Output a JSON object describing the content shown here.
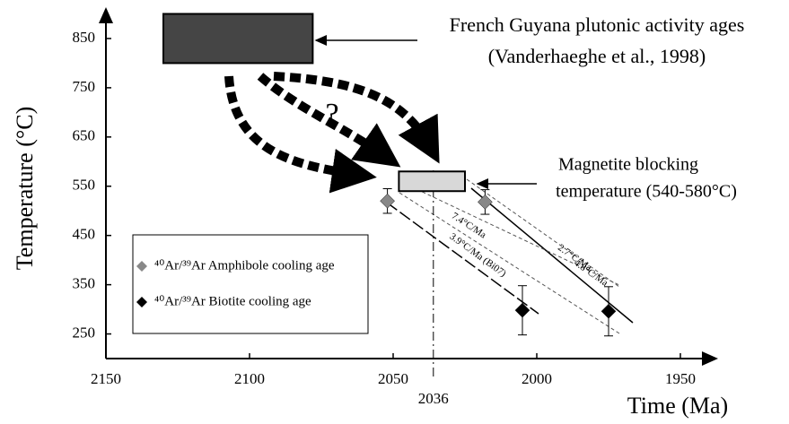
{
  "chart_data": {
    "type": "scatter",
    "x_label": "Time (Ma)",
    "y_label": "Temperature (°C)",
    "xlim": [
      2150,
      1940
    ],
    "xticks": [
      2150,
      2100,
      2050,
      2000,
      1950
    ],
    "ylim": [
      200,
      910
    ],
    "yticks": [
      850,
      750,
      650,
      550,
      450,
      350,
      250
    ],
    "marker_line": {
      "value": 2036
    },
    "series": [
      {
        "name": "⁴⁰Ar/³⁹Ar Amphibole cooling age",
        "color": "#888888",
        "x": [
          2052,
          2018
        ],
        "values": [
          520,
          518
        ],
        "errors": [
          25,
          25
        ]
      },
      {
        "name": "⁴⁰Ar/³⁹Ar Biotite cooling age",
        "color": "#000000",
        "x": [
          2005,
          1975
        ],
        "values": [
          298,
          296
        ],
        "errors": [
          50,
          50
        ]
      }
    ],
    "boxes": [
      {
        "label": [
          "French Guyana plutonic activity ages",
          "(Vanderhaeghe et al., 1998)"
        ],
        "x": [
          2130,
          2078
        ],
        "y": [
          800,
          900
        ],
        "color": "#454545"
      },
      {
        "label": [
          "Magnetite blocking",
          "temperature (540-580°C)"
        ],
        "x": [
          2048,
          2025
        ],
        "y": [
          540,
          580
        ],
        "color": "#d8d8d8"
      }
    ],
    "annotations": [
      "?",
      "7.4°C/Ma",
      "2.7°C/Ma",
      "4.8°C/Ma",
      "3.9°C/Ma (Bi07)"
    ]
  }
}
